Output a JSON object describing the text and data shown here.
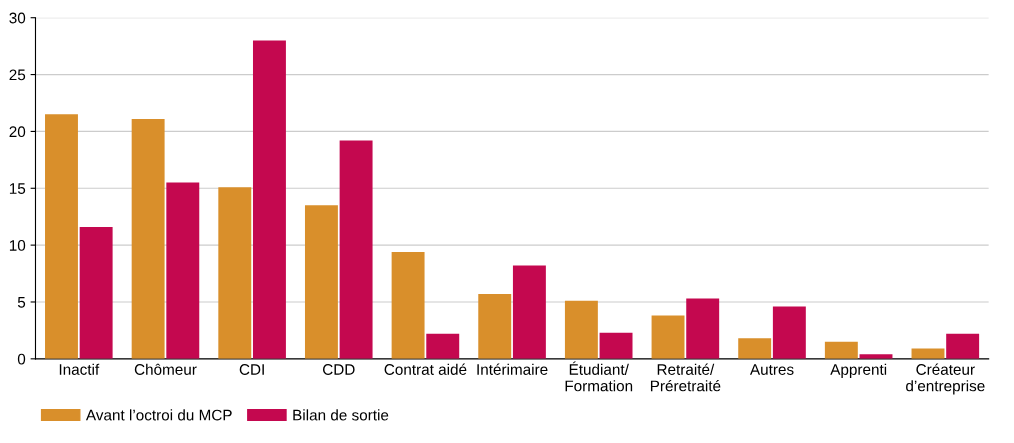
{
  "chart_data": {
    "type": "bar",
    "categories": [
      "Inactif",
      "Chômeur",
      "CDI",
      "CDD",
      "Contrat aidé",
      "Intérimaire",
      "Étudiant/\nFormation",
      "Retraité/\nPréretraité",
      "Autres",
      "Apprenti",
      "Créateur\nd’entreprise"
    ],
    "series": [
      {
        "name": "Avant l’octroi du MCP",
        "color": "#d98f2b",
        "values": [
          21.5,
          21.1,
          15.1,
          13.5,
          9.4,
          5.7,
          5.1,
          3.8,
          1.8,
          1.5,
          0.9
        ]
      },
      {
        "name": "Bilan de sortie",
        "color": "#c4084f",
        "values": [
          11.6,
          15.5,
          28.0,
          19.2,
          2.2,
          8.2,
          2.3,
          5.3,
          4.6,
          0.4,
          2.2
        ]
      }
    ],
    "ylim": [
      0,
      30
    ],
    "yticks": [
      0,
      5,
      10,
      15,
      20,
      25,
      30
    ],
    "grid": "y",
    "legend": "bottom left"
  }
}
